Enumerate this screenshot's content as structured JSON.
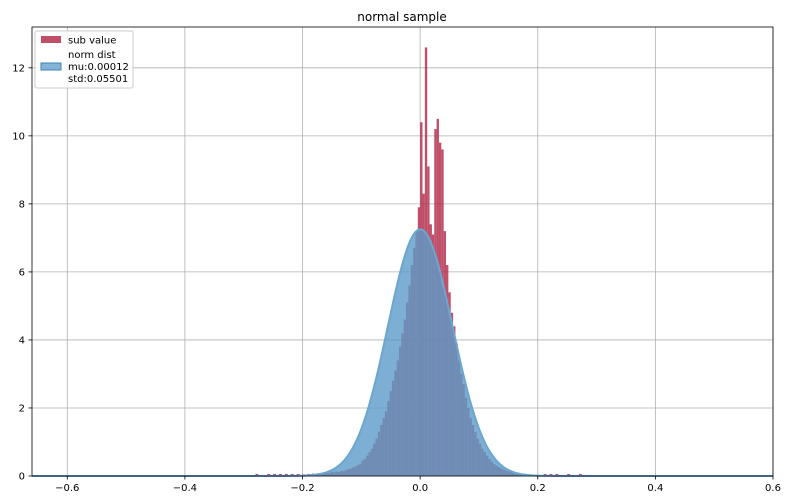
{
  "chart_data": {
    "type": "bar",
    "title": "normal sample",
    "xlabel": "",
    "ylabel": "",
    "xlim": [
      -0.66,
      0.6
    ],
    "ylim": [
      0,
      13.2
    ],
    "xticks": [
      -0.6,
      -0.4,
      -0.2,
      0.0,
      0.2,
      0.4,
      0.6
    ],
    "xtick_labels": [
      "−0.6",
      "−0.4",
      "−0.2",
      "0.0",
      "0.2",
      "0.4",
      "0.6"
    ],
    "yticks": [
      0,
      2,
      4,
      6,
      8,
      10,
      12
    ],
    "ytick_labels": [
      "0",
      "2",
      "4",
      "6",
      "8",
      "10",
      "12"
    ],
    "grid": true,
    "legend_position": "top-left",
    "series": [
      {
        "name": "sub value",
        "kind": "histogram",
        "color": "#b5304f",
        "bin_width": 0.005,
        "bin_start": -0.2,
        "density": [
          0.05,
          0.04,
          0.06,
          0.05,
          0.07,
          0.05,
          0.08,
          0.07,
          0.09,
          0.08,
          0.1,
          0.09,
          0.12,
          0.11,
          0.13,
          0.12,
          0.15,
          0.14,
          0.18,
          0.2,
          0.22,
          0.25,
          0.28,
          0.32,
          0.35,
          0.45,
          0.5,
          0.6,
          0.7,
          0.8,
          0.95,
          1.1,
          1.3,
          1.5,
          1.7,
          1.9,
          2.2,
          2.5,
          2.8,
          3.1,
          3.4,
          3.8,
          4.2,
          4.6,
          5.1,
          5.6,
          6.2,
          6.7,
          7.2,
          7.9,
          10.4,
          8.3,
          12.6,
          9.1,
          7.4,
          7.1,
          10.2,
          10.5,
          9.8,
          9.6,
          7.2,
          6.2,
          5.4,
          4.8,
          4.4,
          3.9,
          3.4,
          3.0,
          2.7,
          2.3,
          2.0,
          1.7,
          1.5,
          1.3,
          1.1,
          0.95,
          0.8,
          0.7,
          0.6,
          0.5,
          0.42,
          0.35,
          0.3,
          0.26,
          0.22,
          0.19,
          0.16,
          0.14,
          0.12,
          0.1,
          0.09,
          0.08,
          0.07,
          0.06,
          0.05,
          0.05,
          0.04,
          0.04,
          0.03,
          0.03
        ]
      },
      {
        "name": "norm dist\nmu:0.00012\nstd:0.05501",
        "kind": "normal_pdf",
        "color": "#5b9bc8",
        "mu": 0.00012,
        "std": 0.05501
      }
    ]
  },
  "legend": {
    "hist_label": "sub value",
    "norm_label_1": "norm dist",
    "norm_label_2": "mu:0.00012",
    "norm_label_3": "std:0.05501"
  }
}
